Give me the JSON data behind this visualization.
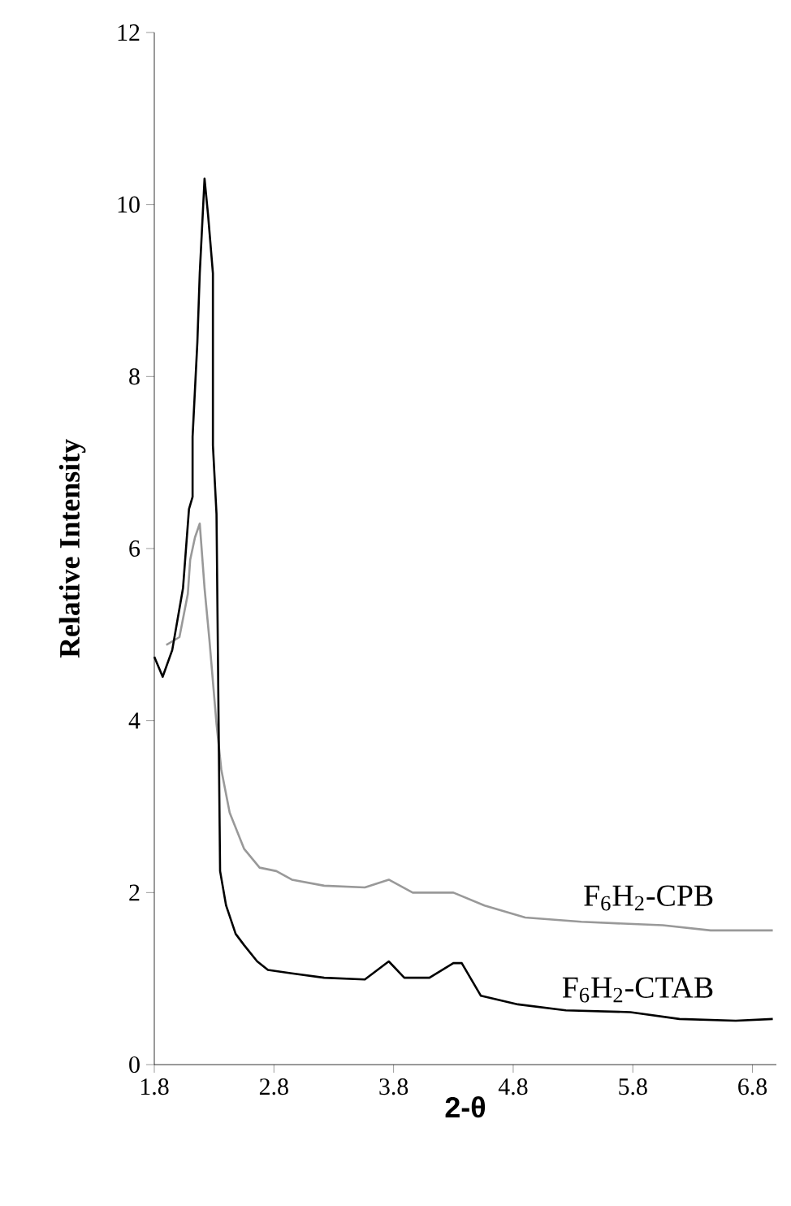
{
  "chart_data": {
    "type": "line",
    "xlabel": "2-θ",
    "ylabel": "Relative Intensity",
    "xlim": [
      1.8,
      7.0
    ],
    "ylim": [
      0,
      12
    ],
    "xticks": [
      1.8,
      2.8,
      3.8,
      4.8,
      5.8,
      6.8
    ],
    "yticks": [
      0,
      2,
      4,
      6,
      8,
      10,
      12
    ],
    "grid": false,
    "legend": false,
    "marker": "none",
    "line_style": "solid",
    "series": [
      {
        "name": "F$_{6}$H$_{2}$-CPB",
        "color": "#999999",
        "x": [
          1.9,
          2.01,
          2.08,
          2.1,
          2.14,
          2.18,
          2.22,
          2.26,
          2.32,
          2.36,
          2.43,
          2.55,
          2.68,
          2.82,
          2.95,
          3.22,
          3.56,
          3.76,
          3.96,
          4.3,
          4.56,
          4.9,
          5.37,
          6.05,
          6.45,
          6.97
        ],
        "values": [
          4.88,
          4.97,
          5.47,
          5.87,
          6.13,
          6.29,
          5.54,
          4.95,
          3.96,
          3.43,
          2.93,
          2.51,
          2.29,
          2.25,
          2.15,
          2.08,
          2.06,
          2.15,
          2.0,
          2.0,
          1.85,
          1.71,
          1.66,
          1.62,
          1.56,
          1.56
        ]
      },
      {
        "name": "F$_{6}$H$_{2}$-CTAB",
        "color": "#000000",
        "x": [
          1.8,
          1.87,
          1.95,
          2.04,
          2.09,
          2.12,
          2.12,
          2.16,
          2.18,
          2.22,
          2.25,
          2.29,
          2.29,
          2.32,
          2.35,
          2.4,
          2.48,
          2.55,
          2.66,
          2.75,
          2.95,
          3.22,
          3.56,
          3.76,
          3.89,
          4.1,
          4.3,
          4.37,
          4.53,
          4.84,
          5.24,
          5.78,
          6.19,
          6.66,
          6.97
        ],
        "values": [
          4.74,
          4.51,
          4.82,
          5.54,
          6.46,
          6.6,
          7.3,
          8.4,
          9.2,
          10.3,
          9.87,
          9.2,
          7.2,
          6.4,
          2.25,
          1.85,
          1.52,
          1.39,
          1.2,
          1.1,
          1.06,
          1.01,
          0.99,
          1.2,
          1.01,
          1.01,
          1.18,
          1.18,
          0.8,
          0.7,
          0.63,
          0.61,
          0.53,
          0.51,
          0.53
        ]
      }
    ]
  }
}
